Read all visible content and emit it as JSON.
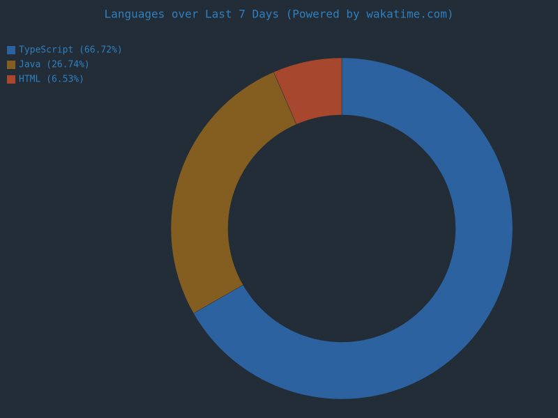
{
  "chart_data": {
    "type": "donut",
    "title": "Languages over Last 7 Days (Powered by wakatime.com)",
    "categories": [
      "TypeScript (66.72%)",
      "Java (26.74%)",
      "HTML (6.53%)"
    ],
    "values": [
      66.72,
      26.74,
      6.53
    ],
    "colors": [
      "#2d62a0",
      "#845d21",
      "#a6472e"
    ],
    "legend": "top-left"
  }
}
